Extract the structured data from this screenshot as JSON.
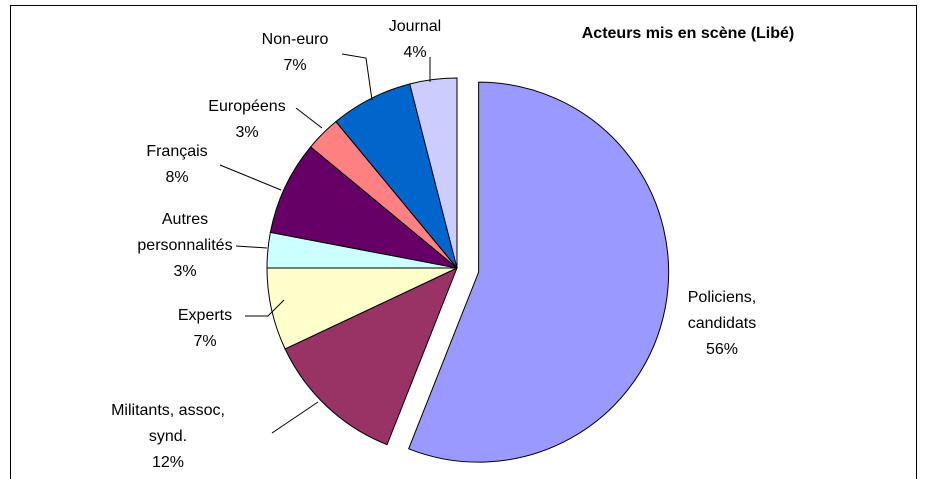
{
  "chart_data": {
    "type": "pie",
    "title": "Acteurs mis en scène (Libé)",
    "categories": [
      "Policiens,\ncandidats",
      "Militants, assoc,\nsynd.",
      "Experts",
      "Autres\npersonnalités",
      "Français",
      "Européens",
      "Non-euro",
      "Journal"
    ],
    "values": [
      56,
      12,
      7,
      3,
      8,
      3,
      7,
      4
    ],
    "value_labels": [
      "56%",
      "12%",
      "7%",
      "3%",
      "8%",
      "3%",
      "7%",
      "4%"
    ],
    "colors": [
      "#9999ff",
      "#993366",
      "#ffffcc",
      "#ccffff",
      "#660066",
      "#ff8080",
      "#0066cc",
      "#ccccff"
    ]
  }
}
